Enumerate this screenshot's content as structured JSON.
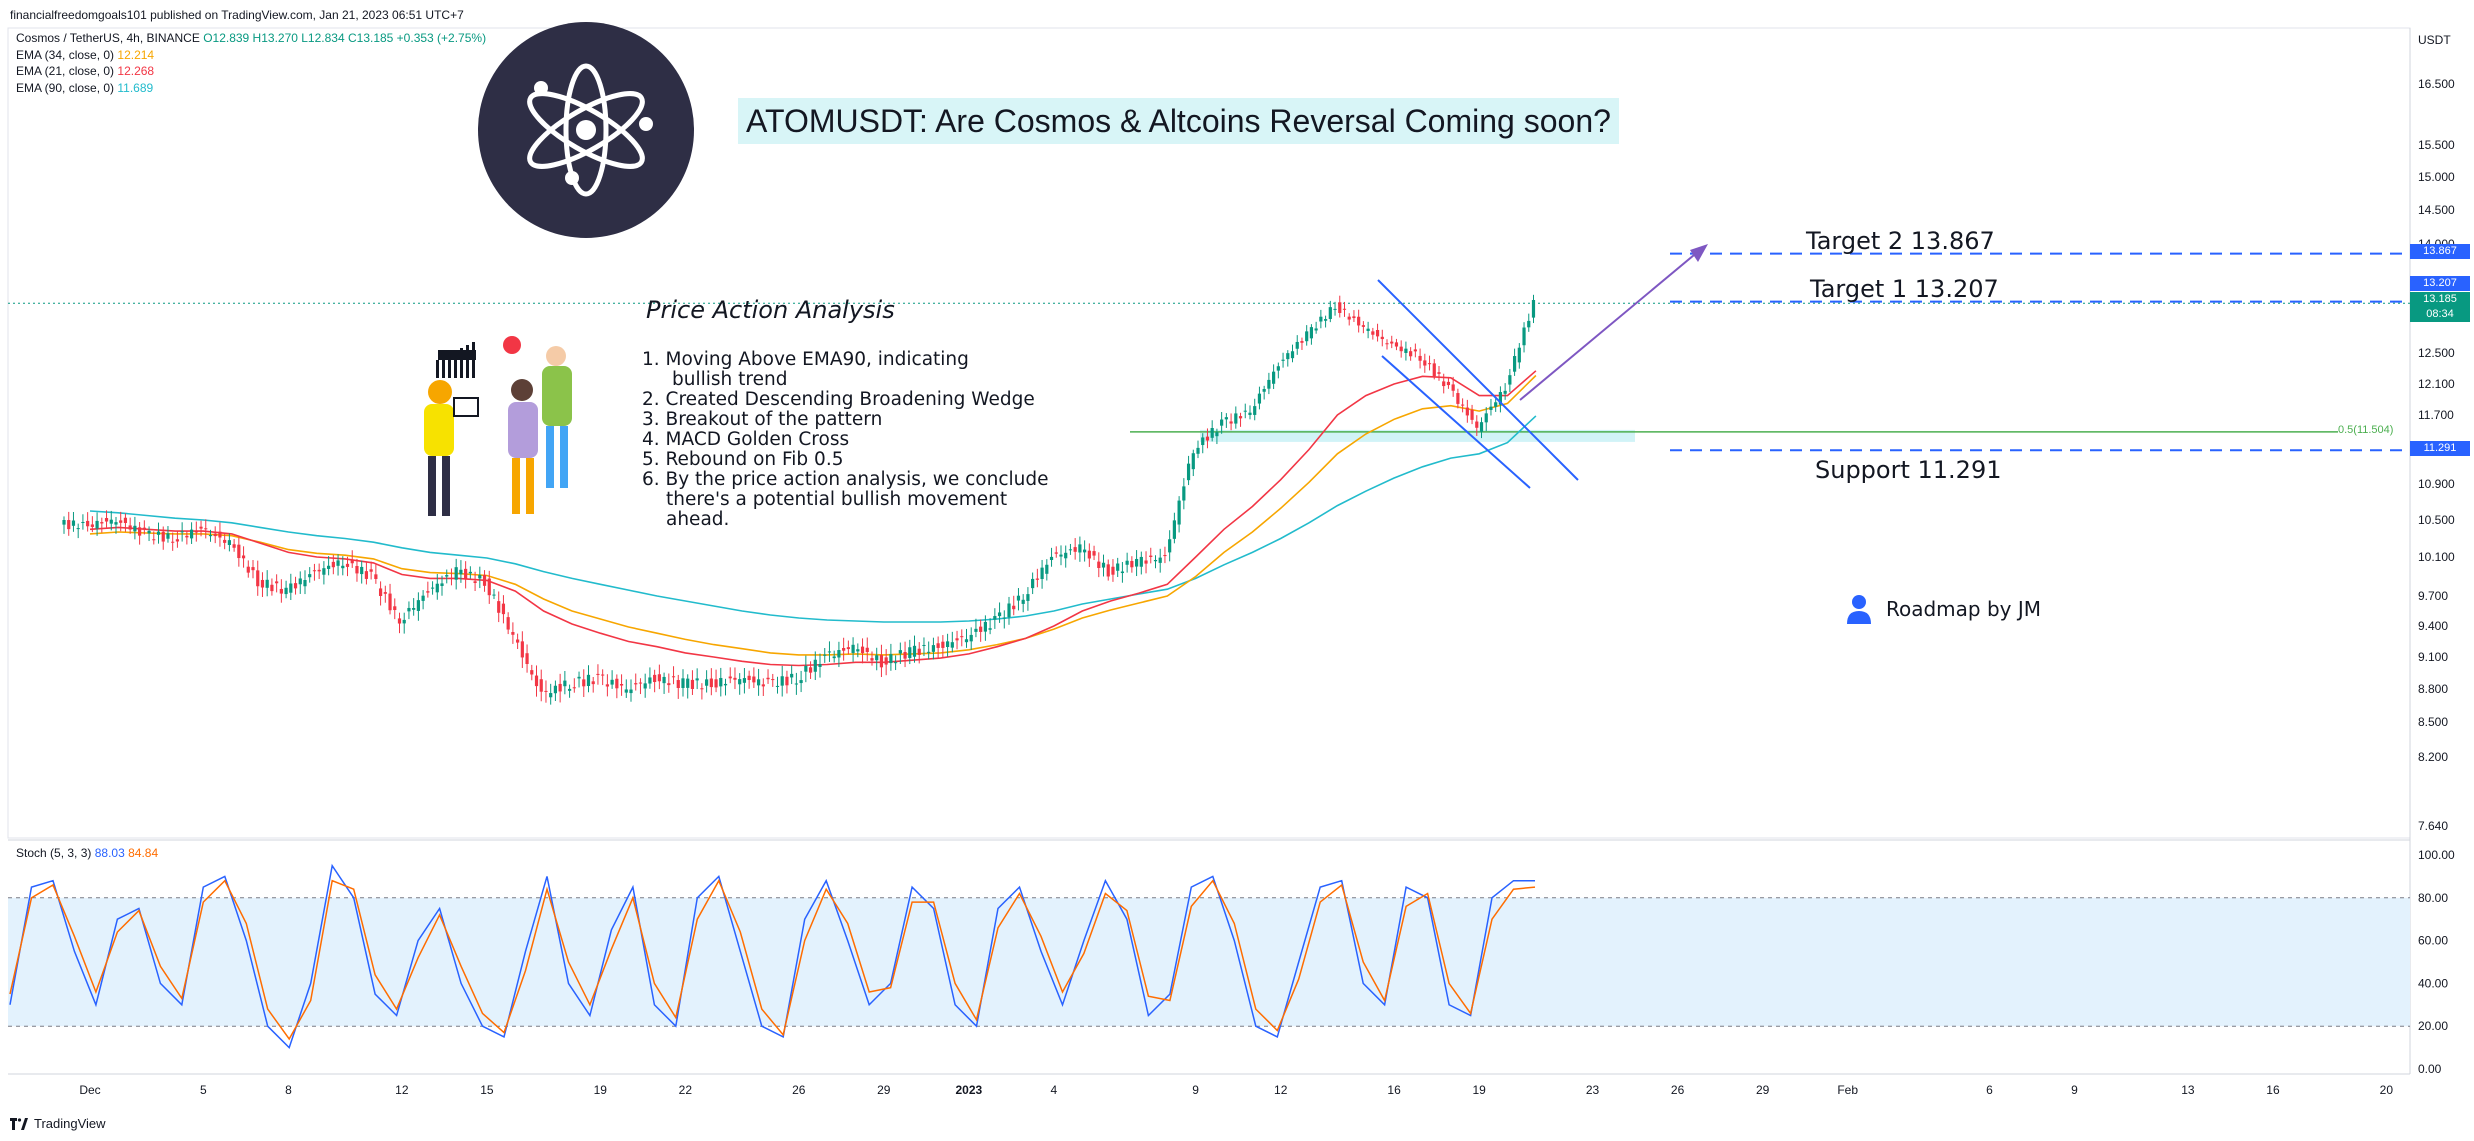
{
  "header": {
    "publisher": "financialfreedomgoals101 published on TradingView.com, Jan 21, 2023 06:51 UTC+7"
  },
  "legend": {
    "symbol": "Cosmos / TetherUS, 4h, BINANCE",
    "ohlc": "O12.839 H13.270 L12.834 C13.185 +0.353 (+2.75%)",
    "ema34_label": "EMA (34, close, 0)",
    "ema34_value": "12.214",
    "ema21_label": "EMA (21, close, 0)",
    "ema21_value": "12.268",
    "ema90_label": "EMA (90, close, 0)",
    "ema90_value": "11.689"
  },
  "colors": {
    "up": "#089981",
    "down": "#f23645",
    "ema34": "#f7a600",
    "ema21": "#f23645",
    "ema90": "#22bbcc",
    "stoch_k": "#2962ff",
    "stoch_d": "#ff6d00",
    "target": "#2962ff",
    "support_tag": "#2962ff",
    "price_tag": "#089981",
    "fib": "#4caf50",
    "arrow": "#7e57c2",
    "wedge": "#2962ff",
    "title_bg": "#d8f5f7",
    "stoch_band": "#e3f2fd"
  },
  "annotations": {
    "title": "ATOMUSDT: Are Cosmos & Altcoins Reversal Coming soon?",
    "analysis_title": "Price Action Analysis",
    "analysis_items": [
      "1.  Moving Above EMA90, indicating",
      "bullish trend",
      "2.  Created Descending Broadening Wedge",
      "3.  Breakout of the pattern",
      "4.  MACD Golden Cross",
      "5.  Rebound on Fib 0.5",
      "6.  By the price action analysis, we conclude",
      "there's a potential bullish movement",
      "ahead."
    ],
    "target2": "Target 2  13.867",
    "target1": "Target 1  13.207",
    "support": "Support 11.291",
    "fib_label": "0.5(11.504)",
    "roadmap": "Roadmap by JM",
    "roadmap_icon": "user-icon",
    "logo_icon": "cosmos-atom-logo"
  },
  "price_tags": {
    "target2": "13.867",
    "target1": "13.207",
    "last_price": "13.185",
    "countdown": "08:34",
    "support": "11.291"
  },
  "stoch": {
    "label": "Stoch (5, 3, 3)",
    "k": "88.03",
    "d": "84.84"
  },
  "footer": {
    "brand": "TradingView"
  },
  "chart_data": [
    {
      "type": "line",
      "title": "",
      "description_series": "price (close, estimated) with EMA 21 / 34 / 90",
      "y_axis_label": "USDT",
      "y_ticks": [
        "16.500",
        "15.500",
        "15.000",
        "14.500",
        "14.000",
        "12.500",
        "12.100",
        "11.700",
        "10.900",
        "10.500",
        "10.100",
        "9.700",
        "9.400",
        "9.100",
        "8.800",
        "8.500",
        "8.200",
        "7.640"
      ],
      "x_ticks": [
        "Dec",
        "5",
        "8",
        "12",
        "15",
        "19",
        "22",
        "26",
        "29",
        "2023",
        "4",
        "9",
        "12",
        "16",
        "19",
        "23",
        "26",
        "29",
        "Feb",
        "6",
        "9",
        "13",
        "16",
        "20"
      ],
      "x_dates": [
        "2022-12-01",
        "2022-12-05",
        "2022-12-08",
        "2022-12-12",
        "2022-12-15",
        "2022-12-19",
        "2022-12-22",
        "2022-12-26",
        "2022-12-29",
        "2023-01-01",
        "2023-01-04",
        "2023-01-09",
        "2023-01-12",
        "2023-01-16",
        "2023-01-19",
        "2023-01-23",
        "2023-01-26",
        "2023-01-29",
        "2023-02-01",
        "2023-02-06",
        "2023-02-09",
        "2023-02-13",
        "2023-02-16",
        "2023-02-20"
      ],
      "price": {
        "x": [
          "2022-12-01",
          "2022-12-02",
          "2022-12-03",
          "2022-12-04",
          "2022-12-05",
          "2022-12-06",
          "2022-12-07",
          "2022-12-08",
          "2022-12-09",
          "2022-12-10",
          "2022-12-11",
          "2022-12-12",
          "2022-12-13",
          "2022-12-14",
          "2022-12-15",
          "2022-12-16",
          "2022-12-17",
          "2022-12-18",
          "2022-12-19",
          "2022-12-20",
          "2022-12-21",
          "2022-12-22",
          "2022-12-23",
          "2022-12-24",
          "2022-12-25",
          "2022-12-26",
          "2022-12-27",
          "2022-12-28",
          "2022-12-29",
          "2022-12-30",
          "2022-12-31",
          "2023-01-01",
          "2023-01-02",
          "2023-01-03",
          "2023-01-04",
          "2023-01-05",
          "2023-01-06",
          "2023-01-07",
          "2023-01-08",
          "2023-01-09",
          "2023-01-10",
          "2023-01-11",
          "2023-01-12",
          "2023-01-13",
          "2023-01-14",
          "2023-01-15",
          "2023-01-16",
          "2023-01-17",
          "2023-01-18",
          "2023-01-19",
          "2023-01-20",
          "2023-01-21"
        ],
        "close": [
          10.45,
          10.5,
          10.35,
          10.3,
          10.4,
          10.25,
          9.85,
          9.75,
          9.95,
          10.05,
          9.9,
          9.45,
          9.75,
          9.95,
          9.85,
          9.3,
          8.75,
          8.85,
          8.9,
          8.8,
          8.9,
          8.85,
          8.85,
          8.9,
          8.85,
          8.9,
          9.1,
          9.2,
          9.05,
          9.15,
          9.2,
          9.3,
          9.45,
          9.7,
          10.1,
          10.2,
          9.95,
          10.05,
          10.1,
          11.3,
          11.6,
          11.75,
          12.35,
          12.75,
          13.15,
          12.85,
          12.6,
          12.45,
          12.05,
          11.55,
          12.05,
          13.18
        ],
        "ema21": [
          10.4,
          10.42,
          10.4,
          10.38,
          10.38,
          10.35,
          10.25,
          10.15,
          10.1,
          10.08,
          10.04,
          9.92,
          9.88,
          9.88,
          9.86,
          9.75,
          9.55,
          9.42,
          9.33,
          9.25,
          9.2,
          9.14,
          9.1,
          9.06,
          9.03,
          9.02,
          9.03,
          9.05,
          9.05,
          9.07,
          9.09,
          9.13,
          9.2,
          9.28,
          9.4,
          9.55,
          9.65,
          9.73,
          9.82,
          10.1,
          10.4,
          10.65,
          10.95,
          11.3,
          11.7,
          11.95,
          12.1,
          12.2,
          12.18,
          11.95,
          11.95,
          12.27
        ],
        "ema34": [
          10.35,
          10.37,
          10.36,
          10.35,
          10.35,
          10.33,
          10.26,
          10.18,
          10.14,
          10.12,
          10.08,
          9.98,
          9.94,
          9.93,
          9.91,
          9.82,
          9.67,
          9.55,
          9.47,
          9.39,
          9.33,
          9.27,
          9.22,
          9.18,
          9.14,
          9.12,
          9.12,
          9.13,
          9.12,
          9.13,
          9.14,
          9.17,
          9.22,
          9.28,
          9.37,
          9.48,
          9.56,
          9.63,
          9.7,
          9.9,
          10.15,
          10.37,
          10.63,
          10.92,
          11.25,
          11.48,
          11.65,
          11.78,
          11.82,
          11.75,
          11.85,
          12.21
        ],
        "ema90": [
          10.6,
          10.58,
          10.55,
          10.52,
          10.5,
          10.47,
          10.42,
          10.37,
          10.33,
          10.3,
          10.26,
          10.2,
          10.15,
          10.12,
          10.09,
          10.03,
          9.95,
          9.88,
          9.82,
          9.76,
          9.7,
          9.65,
          9.6,
          9.55,
          9.51,
          9.48,
          9.46,
          9.45,
          9.44,
          9.44,
          9.44,
          9.45,
          9.47,
          9.5,
          9.55,
          9.62,
          9.67,
          9.72,
          9.77,
          9.88,
          10.02,
          10.15,
          10.3,
          10.47,
          10.66,
          10.82,
          10.97,
          11.1,
          11.2,
          11.25,
          11.38,
          11.69
        ]
      },
      "levels": {
        "target2": 13.867,
        "target1": 13.207,
        "fib_0_5": 11.504,
        "support": 11.291
      }
    },
    {
      "type": "line",
      "title": "",
      "description_series": "Stochastic oscillator %K and %D (estimated)",
      "y_ticks": [
        "100.00",
        "80.00",
        "60.00",
        "40.00",
        "20.00",
        "0.00"
      ],
      "ylim": [
        0,
        100
      ],
      "band": [
        20,
        80
      ],
      "series": [
        {
          "name": "",
          "values": [
            30,
            85,
            88,
            55,
            30,
            70,
            75,
            40,
            30,
            85,
            90,
            60,
            20,
            10,
            40,
            95,
            80,
            35,
            25,
            60,
            75,
            40,
            20,
            15,
            55,
            90,
            40,
            25,
            65,
            85,
            30,
            20,
            80,
            90,
            55,
            20,
            15,
            70,
            88,
            60,
            30,
            40,
            85,
            75,
            30,
            20,
            75,
            85,
            55,
            30,
            60,
            88,
            70,
            25,
            35,
            85,
            90,
            60,
            20,
            15,
            50,
            85,
            88,
            40,
            30,
            85,
            80,
            30,
            25,
            80,
            88,
            88
          ]
        },
        {
          "name": "",
          "values": [
            35,
            80,
            86,
            62,
            36,
            64,
            74,
            48,
            33,
            78,
            88,
            68,
            28,
            14,
            32,
            88,
            84,
            44,
            28,
            52,
            72,
            48,
            26,
            17,
            46,
            84,
            50,
            30,
            56,
            80,
            40,
            24,
            70,
            88,
            64,
            28,
            16,
            60,
            84,
            68,
            36,
            38,
            78,
            78,
            40,
            23,
            66,
            82,
            62,
            36,
            54,
            82,
            74,
            34,
            32,
            76,
            88,
            68,
            28,
            18,
            42,
            78,
            86,
            50,
            32,
            76,
            82,
            40,
            26,
            70,
            84,
            85
          ]
        }
      ]
    }
  ]
}
